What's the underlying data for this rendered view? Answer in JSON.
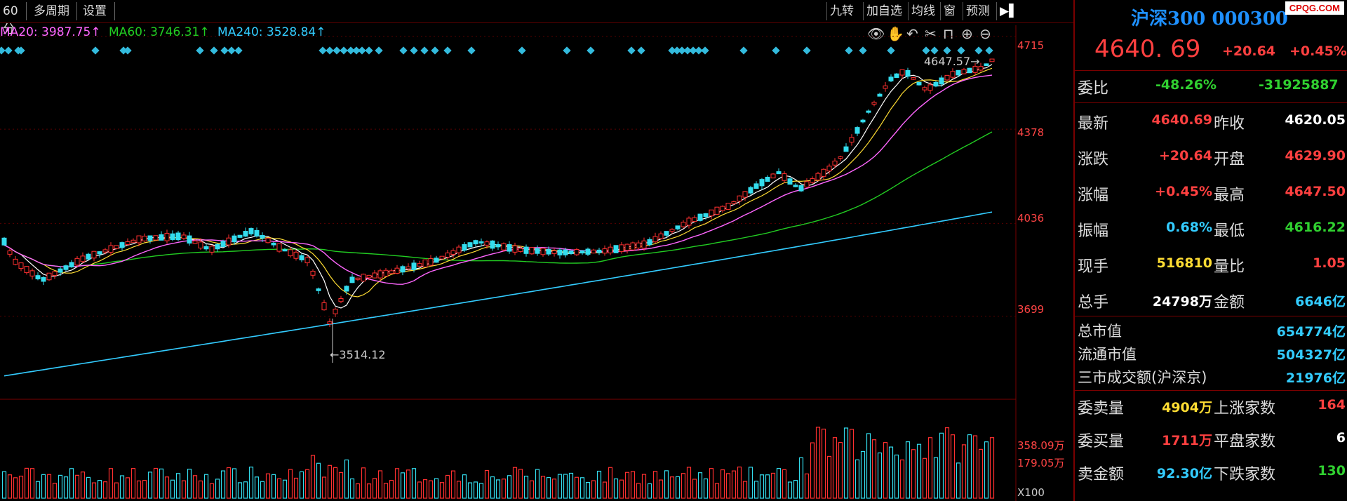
{
  "toolbar": {
    "period": "60分",
    "multi_period": "多周期",
    "settings": "设置",
    "right_buttons": [
      "九转",
      "加自选",
      "均线",
      "窗",
      "预测"
    ]
  },
  "ma": {
    "ma20_label": "MA20: 3987.75↑",
    "ma60_label": "MA60: 3746.31↑",
    "ma240_label": "MA240: 3528.84↑",
    "ma20_color": "#ff66ff",
    "ma60_color": "#22cc22",
    "ma240_color": "#33ccff"
  },
  "price_axis": [
    "4715",
    "4378",
    "4036",
    "3699"
  ],
  "volume_axis": [
    "358.09万",
    "179.05万",
    "X100"
  ],
  "annotations": {
    "high_label": "4647.57",
    "low_label": "3514.12"
  },
  "chart_data": {
    "type": "candlestick",
    "period": "60分",
    "y_ticks": [
      4715,
      4378,
      4036,
      3699
    ],
    "ylim": [
      3395,
      4745
    ],
    "high": 4647.57,
    "low": 3514.12,
    "moving_averages": [
      {
        "name": "MA20",
        "value": 3987.75
      },
      {
        "name": "MA60",
        "value": 3746.31
      },
      {
        "name": "MA240",
        "value": 3528.84
      }
    ],
    "volume_ticks": [
      "358.09万",
      "179.05万"
    ],
    "volume_unit": "X100"
  },
  "quote": {
    "title": "沪深300 000300",
    "brand": "CPQG.COM",
    "price": "4640. 69",
    "change": "+20.64",
    "change_pct": "+0.45%",
    "wei_bi_label": "委比",
    "wei_bi_pct": "-48.26%",
    "wei_bi_value": "-31925887",
    "rows": [
      {
        "l1": "最新",
        "v1": "4640.69",
        "c1": "red",
        "l2": "昨收",
        "v2": "4620.05",
        "c2": "white"
      },
      {
        "l1": "涨跌",
        "v1": "+20.64",
        "c1": "red",
        "l2": "开盘",
        "v2": "4629.90",
        "c2": "red"
      },
      {
        "l1": "涨幅",
        "v1": "+0.45%",
        "c1": "red",
        "l2": "最高",
        "v2": "4647.50",
        "c2": "red"
      },
      {
        "l1": "振幅",
        "v1": "0.68%",
        "c1": "cyan",
        "l2": "最低",
        "v2": "4616.22",
        "c2": "green"
      },
      {
        "l1": "现手",
        "v1": "516810",
        "c1": "yellow",
        "l2": "量比",
        "v2": "1.05",
        "c2": "red"
      },
      {
        "l1": "总手",
        "v1": "24798万",
        "c1": "white",
        "l2": "金额",
        "v2": "6646亿",
        "c2": "cyan"
      }
    ],
    "market": [
      {
        "l": "总市值",
        "v": "654774亿"
      },
      {
        "l": "流通市值",
        "v": "504327亿"
      },
      {
        "l": "三市成交额(沪深京)",
        "v": "21976亿"
      }
    ],
    "orders": [
      {
        "l1": "委卖量",
        "v1": "4904万",
        "c1": "yellow",
        "l2": "上涨家数",
        "v2": "164",
        "c2": "red"
      },
      {
        "l1": "委买量",
        "v1": "1711万",
        "c1": "red",
        "l2": "平盘家数",
        "v2": "6",
        "c2": "white"
      },
      {
        "l1": "卖金额",
        "v1": "92.30亿",
        "c1": "cyan",
        "l2": "下跌家数",
        "v2": "130",
        "c2": "green"
      }
    ]
  }
}
